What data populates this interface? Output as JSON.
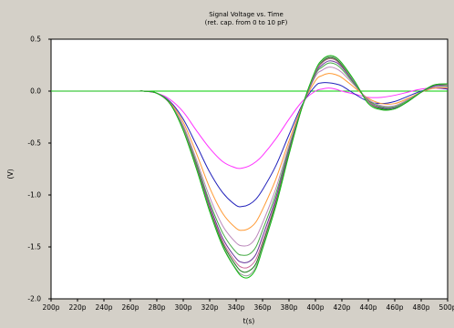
{
  "chart_data": {
    "type": "line",
    "title": "Signal Voltage vs. Time",
    "subtitle": "(ret. cap. from 0 to 10 pF)",
    "xlabel": "t(s)",
    "ylabel": "(V)",
    "xlim": [
      200,
      500
    ],
    "ylim": [
      -2.0,
      0.5
    ],
    "x_unit": "ps",
    "x_ticks": [
      200,
      220,
      240,
      260,
      280,
      300,
      320,
      340,
      360,
      380,
      400,
      420,
      440,
      460,
      480,
      500
    ],
    "x_tick_labels": [
      "200p",
      "220p",
      "240p",
      "260p",
      "280p",
      "300p",
      "320p",
      "340p",
      "360p",
      "380p",
      "400p",
      "420p",
      "440p",
      "460p",
      "480p",
      "500p"
    ],
    "y_ticks": [
      0.5,
      0.0,
      -0.5,
      -1.0,
      -1.5,
      -2.0
    ],
    "y_tick_labels": [
      "0.5",
      "0.0",
      "-0.5",
      "-1.0",
      "-1.5",
      "-2.0"
    ],
    "grid": false,
    "x": [
      200,
      260,
      270,
      280,
      290,
      300,
      310,
      320,
      330,
      340,
      345,
      350,
      355,
      360,
      370,
      380,
      390,
      400,
      405,
      410,
      415,
      420,
      430,
      440,
      450,
      460,
      470,
      480,
      490,
      500
    ],
    "series": [
      {
        "color": "#00cc00",
        "values": [
          0,
          0,
          0,
          0,
          0,
          0,
          0,
          0,
          0,
          0,
          0,
          0,
          0,
          0,
          0,
          0,
          0,
          0,
          0,
          0,
          0,
          0,
          0,
          0,
          0,
          0,
          0,
          0,
          0,
          0
        ]
      },
      {
        "color": "#ff33ff",
        "values": [
          0,
          0,
          0,
          -0.02,
          -0.08,
          -0.2,
          -0.38,
          -0.55,
          -0.68,
          -0.74,
          -0.74,
          -0.72,
          -0.68,
          -0.62,
          -0.46,
          -0.27,
          -0.1,
          0.0,
          0.02,
          0.03,
          0.02,
          0.0,
          -0.03,
          -0.06,
          -0.06,
          -0.04,
          -0.01,
          0.02,
          0.03,
          0.02
        ]
      },
      {
        "color": "#2222bb",
        "values": [
          0,
          0,
          0,
          -0.02,
          -0.1,
          -0.27,
          -0.52,
          -0.78,
          -0.98,
          -1.1,
          -1.11,
          -1.09,
          -1.04,
          -0.95,
          -0.72,
          -0.42,
          -0.13,
          0.05,
          0.08,
          0.08,
          0.07,
          0.05,
          -0.03,
          -0.1,
          -0.12,
          -0.1,
          -0.05,
          0.0,
          0.03,
          0.02
        ]
      },
      {
        "color": "#ff9933",
        "values": [
          0,
          0,
          0,
          -0.02,
          -0.11,
          -0.3,
          -0.6,
          -0.93,
          -1.18,
          -1.32,
          -1.34,
          -1.32,
          -1.26,
          -1.14,
          -0.85,
          -0.48,
          -0.14,
          0.1,
          0.15,
          0.17,
          0.16,
          0.13,
          0.03,
          -0.07,
          -0.12,
          -0.12,
          -0.07,
          -0.01,
          0.03,
          0.03
        ]
      },
      {
        "color": "#bb88bb",
        "values": [
          0,
          0,
          0,
          -0.02,
          -0.12,
          -0.33,
          -0.66,
          -1.02,
          -1.3,
          -1.46,
          -1.49,
          -1.48,
          -1.41,
          -1.27,
          -0.94,
          -0.52,
          -0.15,
          0.14,
          0.2,
          0.23,
          0.22,
          0.18,
          0.05,
          -0.08,
          -0.14,
          -0.14,
          -0.08,
          -0.01,
          0.04,
          0.04
        ]
      },
      {
        "color": "#44aa44",
        "values": [
          0,
          0,
          0,
          -0.02,
          -0.12,
          -0.35,
          -0.69,
          -1.07,
          -1.37,
          -1.55,
          -1.58,
          -1.57,
          -1.5,
          -1.34,
          -0.99,
          -0.55,
          -0.15,
          0.16,
          0.23,
          0.27,
          0.26,
          0.21,
          0.06,
          -0.09,
          -0.15,
          -0.15,
          -0.09,
          -0.01,
          0.05,
          0.05
        ]
      },
      {
        "color": "#663399",
        "values": [
          0,
          0,
          0,
          -0.02,
          -0.12,
          -0.36,
          -0.71,
          -1.1,
          -1.42,
          -1.61,
          -1.65,
          -1.64,
          -1.57,
          -1.4,
          -1.03,
          -0.57,
          -0.15,
          0.17,
          0.25,
          0.29,
          0.28,
          0.23,
          0.07,
          -0.1,
          -0.16,
          -0.16,
          -0.1,
          -0.01,
          0.05,
          0.06
        ]
      },
      {
        "color": "#cc6699",
        "values": [
          0,
          0,
          0,
          -0.02,
          -0.12,
          -0.36,
          -0.72,
          -1.12,
          -1.45,
          -1.65,
          -1.7,
          -1.69,
          -1.62,
          -1.45,
          -1.06,
          -0.59,
          -0.15,
          0.18,
          0.27,
          0.31,
          0.3,
          0.24,
          0.08,
          -0.1,
          -0.17,
          -0.17,
          -0.1,
          -0.01,
          0.06,
          0.06
        ]
      },
      {
        "color": "#1a7a1a",
        "values": [
          0,
          0,
          0,
          -0.02,
          -0.12,
          -0.37,
          -0.73,
          -1.14,
          -1.47,
          -1.68,
          -1.74,
          -1.73,
          -1.66,
          -1.48,
          -1.08,
          -0.6,
          -0.15,
          0.19,
          0.28,
          0.32,
          0.31,
          0.25,
          0.08,
          -0.11,
          -0.17,
          -0.17,
          -0.1,
          -0.01,
          0.06,
          0.07
        ]
      },
      {
        "color": "#999999",
        "values": [
          0,
          0,
          0,
          -0.02,
          -0.12,
          -0.37,
          -0.74,
          -1.15,
          -1.49,
          -1.71,
          -1.77,
          -1.77,
          -1.69,
          -1.5,
          -1.1,
          -0.61,
          -0.15,
          0.19,
          0.29,
          0.33,
          0.32,
          0.26,
          0.08,
          -0.11,
          -0.18,
          -0.17,
          -0.1,
          -0.01,
          0.06,
          0.07
        ]
      },
      {
        "color": "#11bb11",
        "values": [
          0,
          0,
          0,
          -0.02,
          -0.12,
          -0.38,
          -0.75,
          -1.16,
          -1.5,
          -1.72,
          -1.79,
          -1.79,
          -1.71,
          -1.52,
          -1.11,
          -0.61,
          -0.15,
          0.2,
          0.3,
          0.34,
          0.33,
          0.27,
          0.09,
          -0.12,
          -0.18,
          -0.17,
          -0.1,
          -0.01,
          0.06,
          0.07
        ]
      }
    ]
  }
}
